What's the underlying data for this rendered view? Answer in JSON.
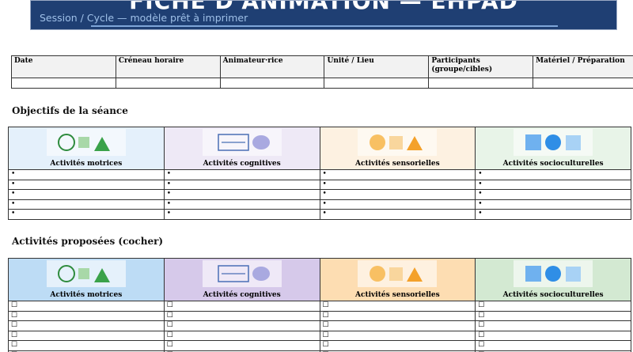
{
  "header": {
    "title": "FICHE D'ANIMATION — EHPAD",
    "subtitle": "Session / Cycle — modèle prêt à imprimer"
  },
  "info_table": {
    "headers": [
      "Date",
      "Créneau horaire",
      "Animateur·rice",
      "Unité / Lieu",
      "Participants\n(groupe/cibles)",
      "Matériel / Préparation"
    ]
  },
  "objectives": {
    "title": "Objectifs de la séance",
    "columns": [
      "Activités motrices",
      "Activités cognitives",
      "Activités sensorielles",
      "Activités socioculturelles"
    ],
    "rows": [
      [
        "•",
        "•",
        "•",
        "•"
      ],
      [
        "•",
        "•",
        "•",
        "•"
      ],
      [
        "•",
        "•",
        "•",
        "•"
      ],
      [
        "•",
        "•",
        "•",
        "•"
      ],
      [
        "•",
        "•",
        "•",
        "•"
      ]
    ]
  },
  "activities": {
    "title": "Activités proposées (cocher)",
    "columns": [
      "Activités motrices",
      "Activités cognitives",
      "Activités sensorielles",
      "Activités socioculturelles"
    ],
    "rows": [
      [
        "☐",
        "☐",
        "☐",
        "☐"
      ],
      [
        "☐",
        "☐",
        "☐",
        "☐"
      ],
      [
        "☐",
        "☐",
        "☐",
        "☐"
      ],
      [
        "☐",
        "☐",
        "☐",
        "☐"
      ],
      [
        "☐",
        "☐",
        "☐",
        "☐"
      ],
      [
        "☐",
        "☐",
        "☐",
        "☐"
      ]
    ]
  }
}
